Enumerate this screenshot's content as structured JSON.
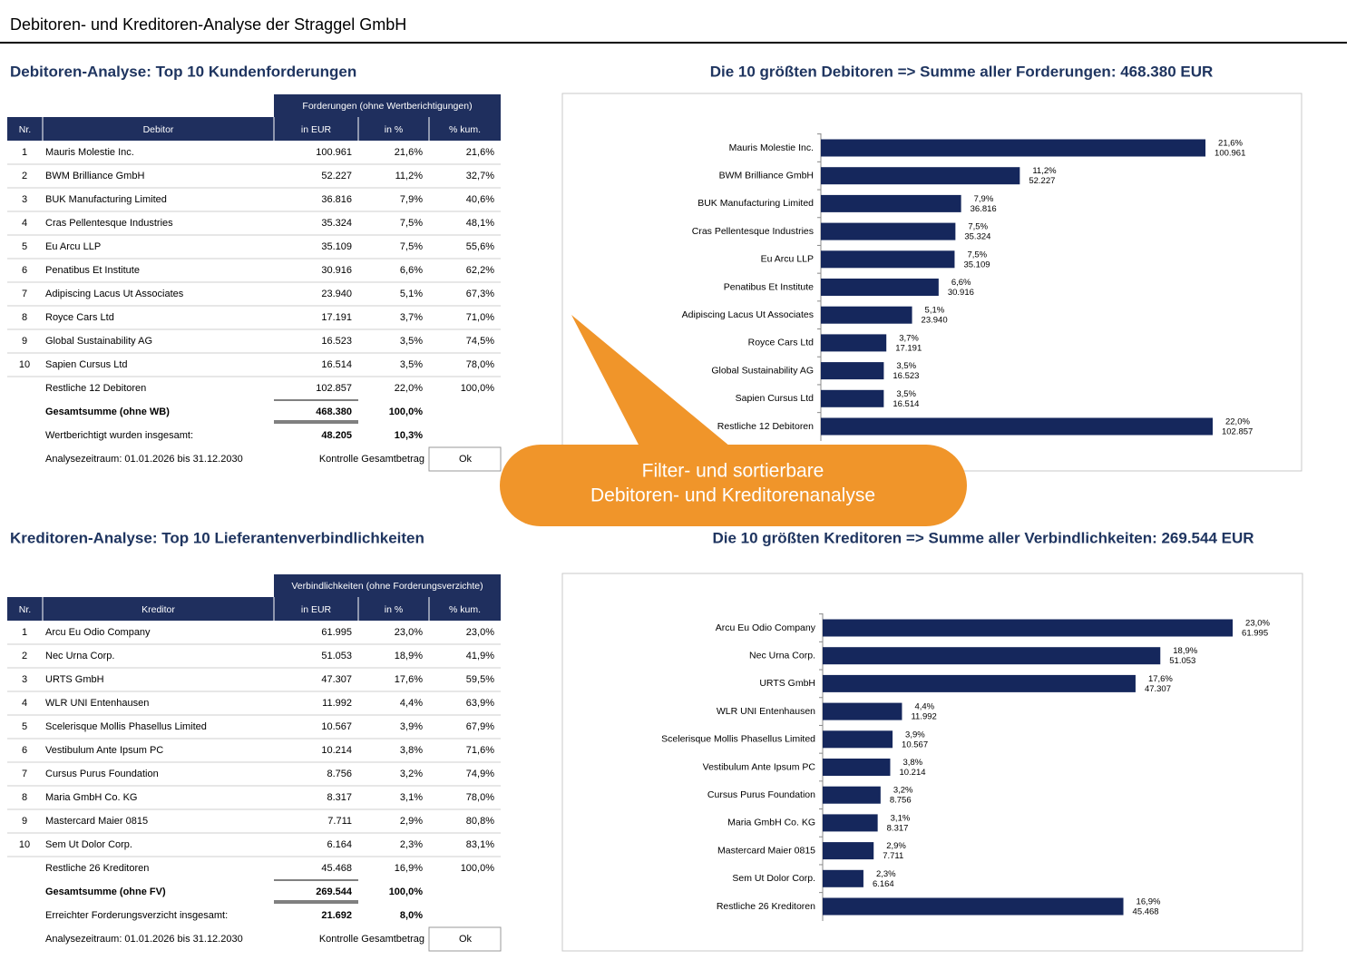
{
  "title": "Debitoren- und Kreditoren-Analyse der Straggel GmbH",
  "debitoren": {
    "heading": "Debitoren-Analyse: Top 10 Kundenforderungen",
    "group_header": "Forderungen (ohne Wertberichtigungen)",
    "columns": [
      "Nr.",
      "Debitor",
      "in EUR",
      "in %",
      "% kum."
    ],
    "rows": [
      [
        "1",
        "Mauris Molestie Inc.",
        "100.961",
        "21,6%",
        "21,6%"
      ],
      [
        "2",
        "BWM Brilliance GmbH",
        "52.227",
        "11,2%",
        "32,7%"
      ],
      [
        "3",
        "BUK Manufacturing Limited",
        "36.816",
        "7,9%",
        "40,6%"
      ],
      [
        "4",
        "Cras Pellentesque Industries",
        "35.324",
        "7,5%",
        "48,1%"
      ],
      [
        "5",
        "Eu Arcu LLP",
        "35.109",
        "7,5%",
        "55,6%"
      ],
      [
        "6",
        "Penatibus Et Institute",
        "30.916",
        "6,6%",
        "62,2%"
      ],
      [
        "7",
        "Adipiscing Lacus Ut Associates",
        "23.940",
        "5,1%",
        "67,3%"
      ],
      [
        "8",
        "Royce Cars Ltd",
        "17.191",
        "3,7%",
        "71,0%"
      ],
      [
        "9",
        "Global Sustainability AG",
        "16.523",
        "3,5%",
        "74,5%"
      ],
      [
        "10",
        "Sapien Cursus Ltd",
        "16.514",
        "3,5%",
        "78,0%"
      ]
    ],
    "rest": {
      "label": "Restliche 12 Debitoren",
      "eur": "102.857",
      "pct": "22,0%",
      "kum": "100,0%"
    },
    "total": {
      "label": "Gesamtsumme (ohne WB)",
      "eur": "468.380",
      "pct": "100,0%"
    },
    "adjust": {
      "label": "Wertberichtigt wurden insgesamt:",
      "eur": "48.205",
      "pct": "10,3%"
    },
    "period": {
      "label": "Analysezeitraum: 01.01.2026 bis 31.12.2030",
      "check_label": "Kontrolle Gesamtbetrag",
      "check_value": "Ok"
    }
  },
  "kreditoren": {
    "heading": "Kreditoren-Analyse: Top 10 Lieferantenverbindlichkeiten",
    "group_header": "Verbindlichkeiten (ohne Forderungsverzichte)",
    "columns": [
      "Nr.",
      "Kreditor",
      "in EUR",
      "in %",
      "% kum."
    ],
    "rows": [
      [
        "1",
        "Arcu Eu Odio Company",
        "61.995",
        "23,0%",
        "23,0%"
      ],
      [
        "2",
        "Nec Urna Corp.",
        "51.053",
        "18,9%",
        "41,9%"
      ],
      [
        "3",
        "URTS GmbH",
        "47.307",
        "17,6%",
        "59,5%"
      ],
      [
        "4",
        "WLR UNI Entenhausen",
        "11.992",
        "4,4%",
        "63,9%"
      ],
      [
        "5",
        "Scelerisque Mollis Phasellus Limited",
        "10.567",
        "3,9%",
        "67,9%"
      ],
      [
        "6",
        "Vestibulum Ante Ipsum PC",
        "10.214",
        "3,8%",
        "71,6%"
      ],
      [
        "7",
        "Cursus Purus Foundation",
        "8.756",
        "3,2%",
        "74,9%"
      ],
      [
        "8",
        "Maria GmbH Co. KG",
        "8.317",
        "3,1%",
        "78,0%"
      ],
      [
        "9",
        "Mastercard Maier 0815",
        "7.711",
        "2,9%",
        "80,8%"
      ],
      [
        "10",
        "Sem Ut Dolor Corp.",
        "6.164",
        "2,3%",
        "83,1%"
      ]
    ],
    "rest": {
      "label": "Restliche 26 Kreditoren",
      "eur": "45.468",
      "pct": "16,9%",
      "kum": "100,0%"
    },
    "total": {
      "label": "Gesamtsumme (ohne FV)",
      "eur": "269.544",
      "pct": "100,0%"
    },
    "adjust": {
      "label": "Erreichter Forderungsverzicht insgesamt:",
      "eur": "21.692",
      "pct": "8,0%"
    },
    "period": {
      "label": "Analysezeitraum: 01.01.2026 bis 31.12.2030",
      "check_label": "Kontrolle Gesamtbetrag",
      "check_value": "Ok"
    }
  },
  "chart_data": [
    {
      "type": "hbar",
      "title": "Die 10 größten Debitoren => Summe aller Forderungen: 468.380 EUR",
      "categories": [
        "Mauris Molestie Inc.",
        "BWM Brilliance GmbH",
        "BUK Manufacturing Limited",
        "Cras Pellentesque Industries",
        "Eu Arcu LLP",
        "Penatibus Et Institute",
        "Adipiscing Lacus Ut Associates",
        "Royce Cars Ltd",
        "Global Sustainability AG",
        "Sapien Cursus Ltd",
        "Restliche 12 Debitoren"
      ],
      "values": [
        100961,
        52227,
        36816,
        35324,
        35109,
        30916,
        23940,
        17191,
        16523,
        16514,
        102857
      ],
      "value_labels": [
        "100.961",
        "52.227",
        "36.816",
        "35.324",
        "35.109",
        "30.916",
        "23.940",
        "17.191",
        "16.523",
        "16.514",
        "102.857"
      ],
      "color": "#15275c",
      "xlim": [
        0,
        125000
      ]
    },
    {
      "type": "hbar",
      "title": "Die 10 größten Kreditoren => Summe aller Verbindlichkeiten: 269.544 EUR",
      "categories": [
        "Arcu Eu Odio Company",
        "Nec Urna Corp.",
        "URTS GmbH",
        "WLR UNI Entenhausen",
        "Scelerisque Mollis Phasellus Limited",
        "Vestibulum Ante Ipsum PC",
        "Cursus Purus Foundation",
        "Maria GmbH Co. KG",
        "Mastercard Maier 0815",
        "Sem Ut Dolor Corp.",
        "Restliche 26 Kreditoren"
      ],
      "values": [
        61995,
        51053,
        47307,
        11992,
        10567,
        10214,
        8756,
        8317,
        7711,
        6164,
        45468
      ],
      "value_labels": [
        "61.995",
        "51.053",
        "47.307",
        "11.992",
        "10.567",
        "10.214",
        "8.756",
        "8.317",
        "7.711",
        "6.164",
        "45.468"
      ],
      "color": "#15275c",
      "xlim": [
        0,
        72000
      ]
    }
  ],
  "callout": {
    "lines": [
      "Filter- und sortierbare",
      "Debitoren- und Kreditorenanalyse"
    ]
  }
}
